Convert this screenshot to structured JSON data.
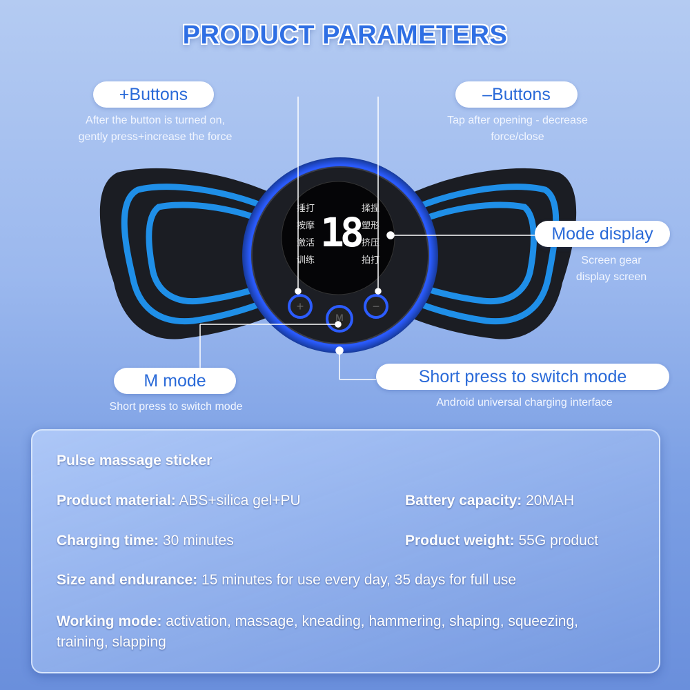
{
  "title": "PRODUCT PARAMETERS",
  "callouts": {
    "plus": {
      "label": "+Buttons",
      "desc1": "After the button is turned on,",
      "desc2": "gently press+increase the force"
    },
    "minus": {
      "label": "–Buttons",
      "desc1": "Tap after opening - decrease",
      "desc2": "force/close"
    },
    "mode_display": {
      "label": "Mode display",
      "desc1": "Screen gear",
      "desc2": "display screen"
    },
    "m_mode": {
      "label": "M mode",
      "desc1": "Short press to switch mode"
    },
    "charging": {
      "label": "Short press to switch mode",
      "desc1": "Android universal charging interface"
    }
  },
  "device": {
    "display_value": "18",
    "modes_left": [
      "捶打",
      "按摩",
      "激活",
      "训练"
    ],
    "modes_right": [
      "揉捏",
      "塑形",
      "挤压",
      "拍打"
    ],
    "button_m": "M"
  },
  "specs": {
    "heading": "Pulse massage sticker",
    "material": {
      "label": "Product material:",
      "value": " ABS+silica gel+PU"
    },
    "battery": {
      "label": "Battery capacity:",
      "value": " 20MAH"
    },
    "charging": {
      "label": "Charging time:",
      "value": " 30 minutes"
    },
    "weight": {
      "label": "Product weight:",
      "value": " 55G product"
    },
    "size": {
      "label": "Size and endurance:",
      "value": " 15 minutes for use every day, 35 days for full use"
    },
    "working": {
      "label": "Working mode:",
      "value": " activation, massage, kneading, hammering, shaping, squeezing,",
      "value2": "training, slapping"
    }
  },
  "colors": {
    "accent": "#2a6ad8",
    "stripe": "#1f8fe8",
    "body": "#1a1c22"
  }
}
